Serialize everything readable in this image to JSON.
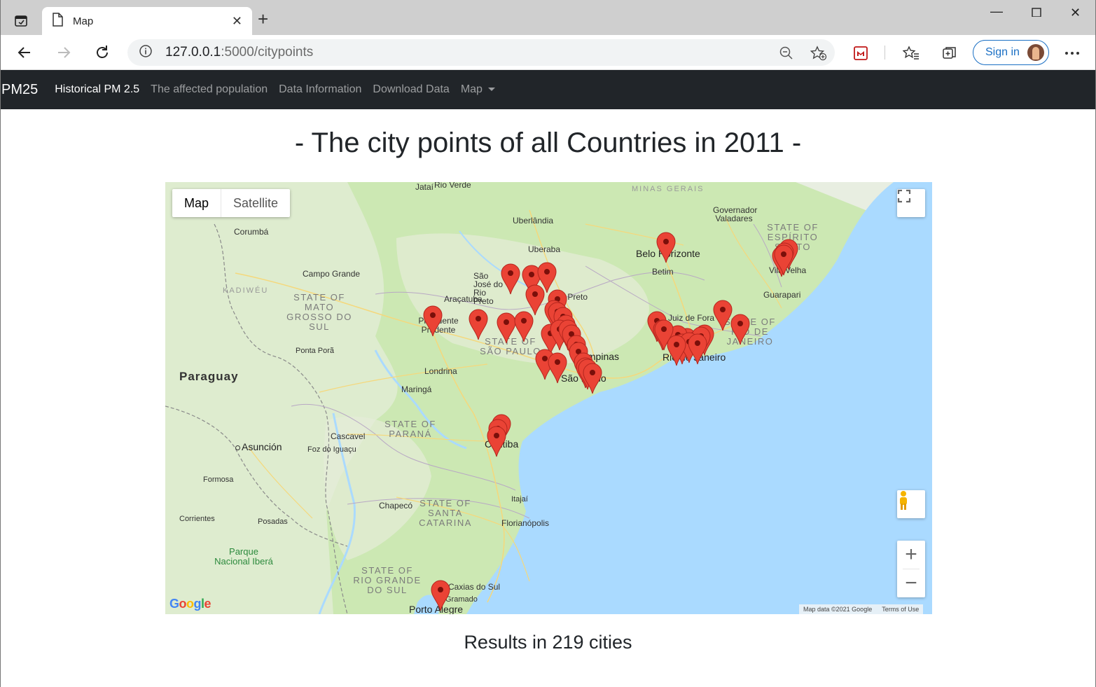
{
  "browser": {
    "tab_title": "Map",
    "url_host": "127.0.0.1",
    "url_path": ":5000/citypoints",
    "sign_in_label": "Sign in"
  },
  "navbar": {
    "brand": "PM25",
    "links": [
      "Historical PM 2.5",
      "The affected population",
      "Data Information",
      "Download Data",
      "Map"
    ]
  },
  "page": {
    "title": "- The city points of all Countries in 2011 -",
    "results": "Results in 219 cities"
  },
  "map": {
    "type_controls": [
      "Map",
      "Satellite"
    ],
    "attribution": [
      "Map data ©2021 Google",
      "Terms of Use"
    ],
    "logo": "Google",
    "labels": {
      "jatai": "Jataí",
      "rio_verde": "Rio Verde",
      "minas_gerais": "MINAS GERAIS",
      "governador_valadares": "Governador Valadares",
      "corumba": "Corumbá",
      "uberlandia": "Uberlândia",
      "uberaba": "Uberaba",
      "belo_horizonte": "Belo Horizonte",
      "betim": "Betim",
      "espirito_santo": "STATE OF ESPÍRITO SANTO",
      "vila_velha": "Vila Velha",
      "guarapari": "Guarapari",
      "campo_grande": "Campo Grande",
      "kadiweu": "KADIWÉU",
      "sao_jose": "São José do Rio Preto",
      "rio_preto": "Rio Preto",
      "aracatuba": "Araçatuba",
      "mato_grosso": "STATE OF MATO GROSSO DO SUL",
      "presidente_prudente": "Presidente Prudente",
      "juiz_de_fora": "Juiz de Fora",
      "rio_state": "STATE OF RIO DE JANEIRO",
      "sao_paulo_state": "STATE OF SÃO PAULO",
      "ponta_pora": "Ponta Porã",
      "rio_city": "Rio de Janeiro",
      "campinas": "Campinas",
      "paraguay": "Paraguay",
      "londrina": "Londrina",
      "sao_paulo_city": "São Paulo",
      "maringa": "Maringá",
      "parana": "STATE OF PARANÁ",
      "cascavel": "Cascavel",
      "curitiba": "Curitiba",
      "asuncion": "Asunción",
      "foz": "Foz do Iguaçu",
      "formosa": "Formosa",
      "itajai": "Itajaí",
      "chapeco": "Chapecó",
      "santa_catarina": "STATE OF SANTA CATARINA",
      "corrientes": "Corrientes",
      "posadas": "Posadas",
      "florianopolis": "Florianópolis",
      "parque": "Parque Nacional Iberá",
      "rio_grande": "STATE OF RIO GRANDE DO SUL",
      "caxias": "Caxias do Sul",
      "gramado": "Gramado",
      "porto_alegre": "Porto Alegre"
    },
    "marker_color": "#ea4335",
    "ocean_color": "#aadaff",
    "land_color": "#c9e7b0"
  }
}
